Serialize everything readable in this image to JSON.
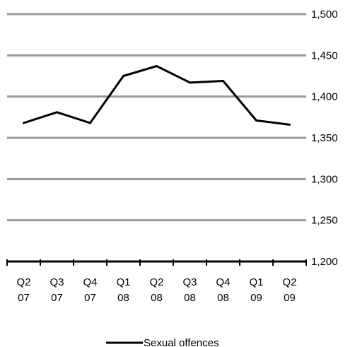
{
  "chart_data": {
    "type": "line",
    "categories": [
      [
        "Q2",
        "07"
      ],
      [
        "Q3",
        "07"
      ],
      [
        "Q4",
        "07"
      ],
      [
        "Q1",
        "08"
      ],
      [
        "Q2",
        "08"
      ],
      [
        "Q3",
        "08"
      ],
      [
        "Q4",
        "08"
      ],
      [
        "Q1",
        "09"
      ],
      [
        "Q2",
        "09"
      ]
    ],
    "series": [
      {
        "name": "Sexual offences",
        "values": [
          1368,
          1381,
          1368,
          1425,
          1437,
          1417,
          1419,
          1371,
          1366
        ],
        "color": "#000000"
      }
    ],
    "y_axis": {
      "position": "right",
      "range": [
        1200,
        1500
      ],
      "ticks": [
        1200,
        1250,
        1300,
        1350,
        1400,
        1450,
        1500
      ],
      "tick_labels": [
        "1,200",
        "1,250",
        "1,300",
        "1,350",
        "1,400",
        "1,450",
        "1,500"
      ]
    },
    "grid": true,
    "grid_color": "#999999",
    "legend": {
      "position": "bottom",
      "label": "Sexual offences"
    },
    "title": "",
    "xlabel": "",
    "ylabel": ""
  }
}
